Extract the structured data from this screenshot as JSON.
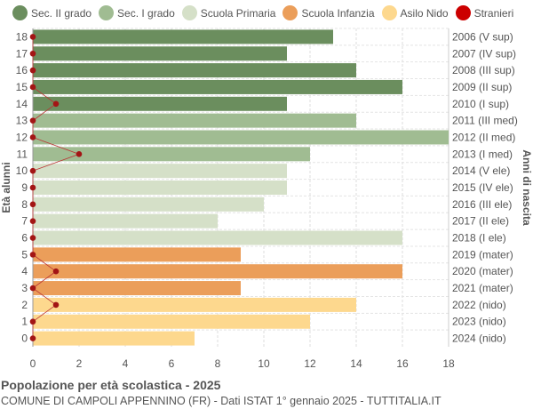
{
  "chart_data": {
    "type": "bar",
    "orientation": "horizontal",
    "title": "Popolazione per età scolastica - 2025",
    "subtitle": "COMUNE DI CAMPOLI APPENNINO (FR) - Dati ISTAT 1° gennaio 2025 - TUTTITALIA.IT",
    "ylabel": "Età alunni",
    "ylabel_right": "Anni di nascita",
    "xlim": [
      0,
      18
    ],
    "xticks": [
      0,
      2,
      4,
      6,
      8,
      10,
      12,
      14,
      16,
      18
    ],
    "grid": true,
    "legend_position": "top",
    "legend": [
      {
        "name": "Sec. II grado",
        "color": "#6b8e5e"
      },
      {
        "name": "Sec. I grado",
        "color": "#a0bc92"
      },
      {
        "name": "Scuola Primaria",
        "color": "#d5e0c8"
      },
      {
        "name": "Scuola Infanzia",
        "color": "#eb9e5a"
      },
      {
        "name": "Asilo Nido",
        "color": "#fdd88e"
      },
      {
        "name": "Stranieri",
        "color": "#cc0000"
      }
    ],
    "rows": [
      {
        "age": 18,
        "birth": "2006 (V sup)",
        "value": 13,
        "stranieri": 0,
        "group": 0
      },
      {
        "age": 17,
        "birth": "2007 (IV sup)",
        "value": 11,
        "stranieri": 0,
        "group": 0
      },
      {
        "age": 16,
        "birth": "2008 (III sup)",
        "value": 14,
        "stranieri": 0,
        "group": 0
      },
      {
        "age": 15,
        "birth": "2009 (II sup)",
        "value": 16,
        "stranieri": 0,
        "group": 0
      },
      {
        "age": 14,
        "birth": "2010 (I sup)",
        "value": 11,
        "stranieri": 1,
        "group": 0
      },
      {
        "age": 13,
        "birth": "2011 (III med)",
        "value": 14,
        "stranieri": 0,
        "group": 1
      },
      {
        "age": 12,
        "birth": "2012 (II med)",
        "value": 18,
        "stranieri": 0,
        "group": 1
      },
      {
        "age": 11,
        "birth": "2013 (I med)",
        "value": 12,
        "stranieri": 2,
        "group": 1
      },
      {
        "age": 10,
        "birth": "2014 (V ele)",
        "value": 11,
        "stranieri": 0,
        "group": 2
      },
      {
        "age": 9,
        "birth": "2015 (IV ele)",
        "value": 11,
        "stranieri": 0,
        "group": 2
      },
      {
        "age": 8,
        "birth": "2016 (III ele)",
        "value": 10,
        "stranieri": 0,
        "group": 2
      },
      {
        "age": 7,
        "birth": "2017 (II ele)",
        "value": 8,
        "stranieri": 0,
        "group": 2
      },
      {
        "age": 6,
        "birth": "2018 (I ele)",
        "value": 16,
        "stranieri": 0,
        "group": 2
      },
      {
        "age": 5,
        "birth": "2019 (mater)",
        "value": 9,
        "stranieri": 0,
        "group": 3
      },
      {
        "age": 4,
        "birth": "2020 (mater)",
        "value": 16,
        "stranieri": 1,
        "group": 3
      },
      {
        "age": 3,
        "birth": "2021 (mater)",
        "value": 9,
        "stranieri": 0,
        "group": 3
      },
      {
        "age": 2,
        "birth": "2022 (nido)",
        "value": 14,
        "stranieri": 1,
        "group": 4
      },
      {
        "age": 1,
        "birth": "2023 (nido)",
        "value": 12,
        "stranieri": 0,
        "group": 4
      },
      {
        "age": 0,
        "birth": "2024 (nido)",
        "value": 7,
        "stranieri": 0,
        "group": 4
      }
    ]
  }
}
